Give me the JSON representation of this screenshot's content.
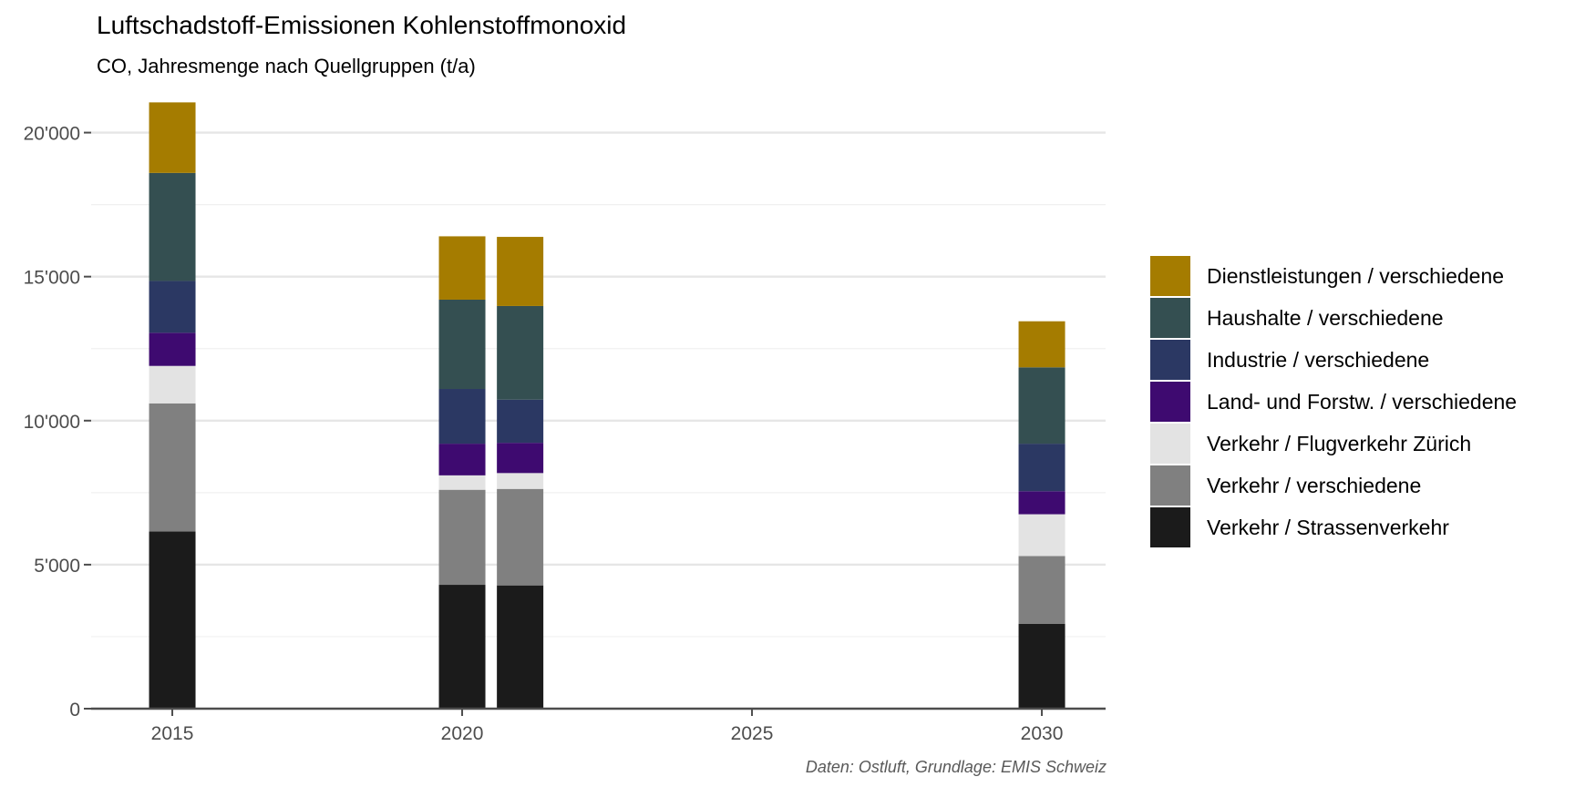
{
  "chart_data": {
    "type": "bar",
    "stacked": true,
    "title": "Luftschadstoff-Emissionen Kohlenstoffmonoxid",
    "subtitle": "CO, Jahresmenge nach Quellgruppen (t/a)",
    "caption": "Daten: Ostluft, Grundlage: EMIS Schweiz",
    "xlabel": "",
    "ylabel": "",
    "x_ticks": [
      "2015",
      "2020",
      "2025",
      "2030"
    ],
    "xlim": [
      2013.6,
      2031.1
    ],
    "y_ticks": [
      "0",
      "5'000",
      "10'000",
      "15'000",
      "20'000"
    ],
    "y_tick_values": [
      0,
      5000,
      10000,
      15000,
      20000
    ],
    "ylim": [
      0,
      21600
    ],
    "grid": true,
    "legend_position": "right",
    "years": [
      2015,
      2020,
      2021,
      2030
    ],
    "series": [
      {
        "name": "Verkehr / Strassenverkehr",
        "color": "#1b1b1b",
        "values": [
          6150,
          4300,
          4280,
          2950
        ]
      },
      {
        "name": "Verkehr / verschiedene",
        "color": "#808080",
        "values": [
          4450,
          3300,
          3350,
          2350
        ]
      },
      {
        "name": "Verkehr / Flugverkehr Zürich",
        "color": "#e3e3e3",
        "values": [
          1300,
          500,
          550,
          1450
        ]
      },
      {
        "name": "Land- und Forstw. / verschiedene",
        "color": "#3e0a70",
        "values": [
          1150,
          1100,
          1050,
          800
        ]
      },
      {
        "name": "Industrie / verschiedene",
        "color": "#2b3863",
        "values": [
          1800,
          1900,
          1500,
          1650
        ]
      },
      {
        "name": "Haushalte / verschiedene",
        "color": "#344f51",
        "values": [
          3750,
          3100,
          3250,
          2650
        ]
      },
      {
        "name": "Dienstleistungen / verschiedene",
        "color": "#a57c00",
        "values": [
          2450,
          2200,
          2400,
          1600
        ]
      }
    ]
  }
}
